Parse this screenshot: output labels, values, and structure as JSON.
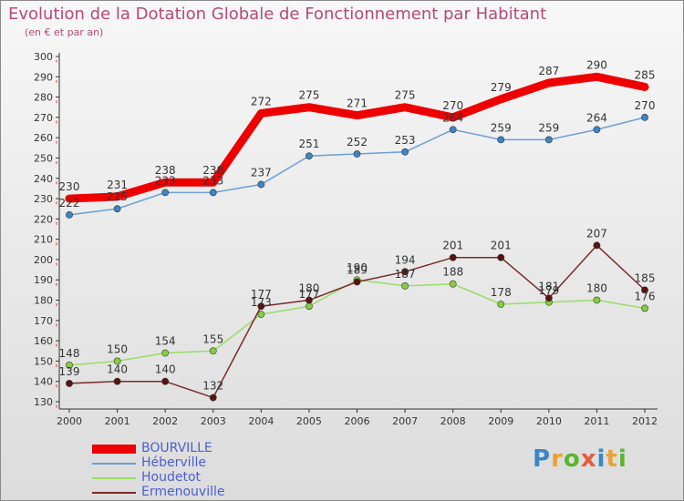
{
  "header": {
    "title": "Evolution de la Dotation Globale de Fonctionnement par Habitant",
    "subtitle": "(en € et par an)"
  },
  "logo": {
    "text": "Proxiti",
    "colors": [
      "#3a86c8",
      "#e8a23a",
      "#59b52e",
      "#e85a3a",
      "#3a86c8",
      "#e8a23a",
      "#59b52e"
    ]
  },
  "chart_data": {
    "type": "line",
    "categories": [
      "2000",
      "2001",
      "2002",
      "2003",
      "2004",
      "2005",
      "2006",
      "2007",
      "2008",
      "2009",
      "2010",
      "2011",
      "2012"
    ],
    "ylim": [
      130,
      300
    ],
    "yticks": [
      130,
      140,
      150,
      160,
      170,
      180,
      190,
      200,
      210,
      220,
      230,
      240,
      250,
      260,
      270,
      280,
      290,
      300
    ],
    "grid": false,
    "legend_position": "bottom-left",
    "series": [
      {
        "name": "BOURVILLE",
        "color": "#ee0000",
        "width": 9,
        "marker": false,
        "values": [
          230,
          231,
          238,
          238,
          272,
          275,
          271,
          275,
          270,
          279,
          287,
          290,
          285
        ]
      },
      {
        "name": "Héberville",
        "color": "#6b9fd4",
        "width": 1.5,
        "marker": true,
        "markerColor": "#3d85c6",
        "values": [
          222,
          225,
          233,
          233,
          237,
          251,
          252,
          253,
          264,
          259,
          259,
          264,
          270
        ]
      },
      {
        "name": "Houdetot",
        "color": "#99dd66",
        "width": 1.5,
        "marker": true,
        "markerColor": "#88cc44",
        "values": [
          148,
          150,
          154,
          155,
          173,
          177,
          190,
          187,
          188,
          178,
          179,
          180,
          176
        ]
      },
      {
        "name": "Ermenouville",
        "color": "#7a2a2a",
        "width": 1.5,
        "marker": true,
        "markerColor": "#5a1212",
        "values": [
          139,
          140,
          140,
          132,
          177,
          180,
          189,
          194,
          201,
          201,
          181,
          207,
          185
        ]
      }
    ]
  }
}
